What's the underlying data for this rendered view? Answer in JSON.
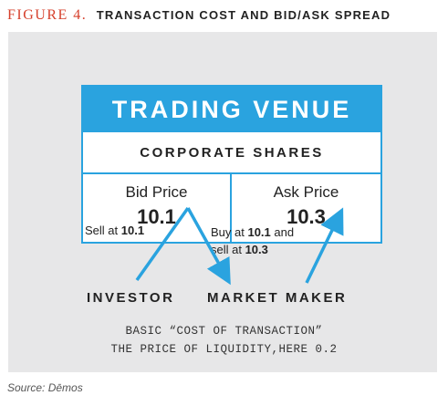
{
  "figure": {
    "number": "FIGURE 4.",
    "title": "TRANSACTION COST AND BID/ASK SPREAD"
  },
  "venue": {
    "title": "TRADING VENUE",
    "subtitle": "CORPORATE SHARES",
    "bid": {
      "label": "Bid Price",
      "value": "10.1"
    },
    "ask": {
      "label": "Ask Price",
      "value": "10.3"
    }
  },
  "flows": {
    "sell_prefix": "Sell at ",
    "sell_value": "10.1",
    "buy_prefix": "Buy at ",
    "buy_value": "10.1",
    "buy_and": " and",
    "buy_line2_prefix": "sell at ",
    "buy_line2_value": "10.3"
  },
  "parties": {
    "investor": "INVESTOR",
    "market_maker": "MARKET MAKER"
  },
  "notes": {
    "line1": "BASIC “COST OF TRANSACTION”",
    "line2": "THE PRICE OF LIQUIDITY,HERE 0.2"
  },
  "source": "Source: Dēmos",
  "colors": {
    "accent_blue": "#2aa3df",
    "figure_red": "#d6402c",
    "panel_gray": "#e7e7e8"
  }
}
